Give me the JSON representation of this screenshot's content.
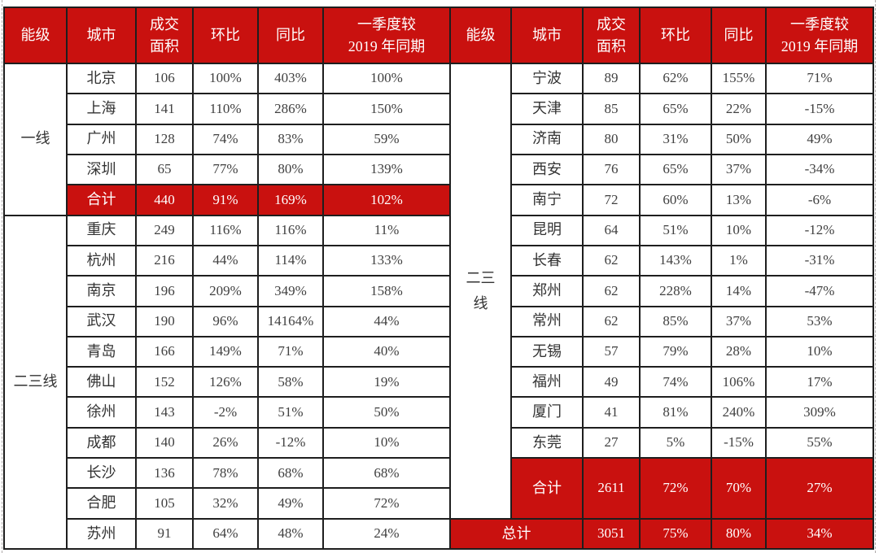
{
  "colors": {
    "accent_red": "#C9110F",
    "border_black": "#1E1E1E",
    "header_text": "#FFFFFF",
    "body_text": "#404040"
  },
  "header": {
    "cols": [
      "能级",
      "城市",
      "成交\n面积",
      "环比",
      "同比",
      "一季度较\n2019 年同期"
    ]
  },
  "chart_data": {
    "type": "table",
    "columns": [
      "能级",
      "城市",
      "成交面积",
      "环比",
      "同比",
      "一季度较2019年同期"
    ],
    "rows": [
      [
        "一线",
        "北京",
        "106",
        "100%",
        "403%",
        "100%"
      ],
      [
        "一线",
        "上海",
        "141",
        "110%",
        "286%",
        "150%"
      ],
      [
        "一线",
        "广州",
        "128",
        "74%",
        "83%",
        "59%"
      ],
      [
        "一线",
        "深圳",
        "65",
        "77%",
        "80%",
        "139%"
      ],
      [
        "一线",
        "合计",
        "440",
        "91%",
        "169%",
        "102%"
      ],
      [
        "二三线",
        "重庆",
        "249",
        "116%",
        "116%",
        "11%"
      ],
      [
        "二三线",
        "杭州",
        "216",
        "44%",
        "114%",
        "133%"
      ],
      [
        "二三线",
        "南京",
        "196",
        "209%",
        "349%",
        "158%"
      ],
      [
        "二三线",
        "武汉",
        "190",
        "96%",
        "14164%",
        "44%"
      ],
      [
        "二三线",
        "青岛",
        "166",
        "149%",
        "71%",
        "40%"
      ],
      [
        "二三线",
        "佛山",
        "152",
        "126%",
        "58%",
        "19%"
      ],
      [
        "二三线",
        "徐州",
        "143",
        "-2%",
        "51%",
        "50%"
      ],
      [
        "二三线",
        "成都",
        "140",
        "26%",
        "-12%",
        "10%"
      ],
      [
        "二三线",
        "长沙",
        "136",
        "78%",
        "68%",
        "68%"
      ],
      [
        "二三线",
        "合肥",
        "105",
        "32%",
        "49%",
        "72%"
      ],
      [
        "二三线",
        "苏州",
        "91",
        "64%",
        "48%",
        "24%"
      ],
      [
        "二三线",
        "宁波",
        "89",
        "62%",
        "155%",
        "71%"
      ],
      [
        "二三线",
        "天津",
        "85",
        "65%",
        "22%",
        "-15%"
      ],
      [
        "二三线",
        "济南",
        "80",
        "31%",
        "50%",
        "49%"
      ],
      [
        "二三线",
        "西安",
        "76",
        "65%",
        "37%",
        "-34%"
      ],
      [
        "二三线",
        "南宁",
        "72",
        "60%",
        "13%",
        "-6%"
      ],
      [
        "二三线",
        "昆明",
        "64",
        "51%",
        "10%",
        "-12%"
      ],
      [
        "二三线",
        "长春",
        "62",
        "143%",
        "1%",
        "-31%"
      ],
      [
        "二三线",
        "郑州",
        "62",
        "228%",
        "14%",
        "-47%"
      ],
      [
        "二三线",
        "常州",
        "62",
        "85%",
        "37%",
        "53%"
      ],
      [
        "二三线",
        "无锡",
        "57",
        "79%",
        "28%",
        "10%"
      ],
      [
        "二三线",
        "福州",
        "49",
        "74%",
        "106%",
        "17%"
      ],
      [
        "二三线",
        "厦门",
        "41",
        "81%",
        "240%",
        "309%"
      ],
      [
        "二三线",
        "东莞",
        "27",
        "5%",
        "-15%",
        "55%"
      ],
      [
        "二三线",
        "合计",
        "2611",
        "72%",
        "70%",
        "27%"
      ],
      [
        "",
        "总计",
        "3051",
        "75%",
        "80%",
        "34%"
      ]
    ]
  }
}
